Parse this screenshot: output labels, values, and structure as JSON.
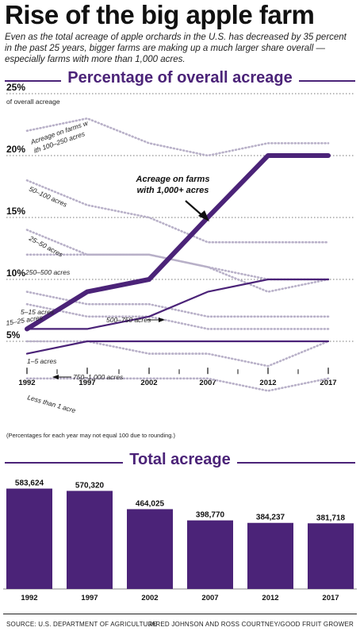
{
  "header": {
    "title": "Rise of the big apple farm",
    "subtitle": "Even as the total acreage of apple orchards in the U.S. has decreased by 35 percent in the past 25 years, bigger farms are making up a much larger share overall — especially farms with more than 1,000 acres."
  },
  "footer": {
    "source": "SOURCE: U.S. DEPARTMENT OF AGRICULTURE",
    "credit": "JARED JOHNSON AND ROSS COURTNEY/GOOD FRUIT GROWER"
  },
  "colors": {
    "accent": "#4b2378",
    "dotted": "#b8b0c8"
  },
  "chart_data": [
    {
      "type": "line",
      "title": "Percentage of overall acreage",
      "ytop_label": "of overall acreage",
      "note": "(Percentages for each year may not equal 100 due to rounding.)",
      "x": [
        "1992",
        "1997",
        "2002",
        "2007",
        "2012",
        "2017"
      ],
      "y_ticks": [
        "25%",
        "20%",
        "15%",
        "10%",
        "5%"
      ],
      "ylim": [
        3,
        25
      ],
      "grid": true,
      "series": [
        {
          "name": "Acreage on farms with 1,000+ acres",
          "style": "bold",
          "values": [
            6,
            9,
            10,
            15,
            20,
            20
          ]
        },
        {
          "name": "500–750 acres",
          "style": "solid",
          "values": [
            6,
            6,
            7,
            9,
            10,
            10
          ]
        },
        {
          "name": "750–1,000 acres",
          "style": "solid",
          "values": [
            4,
            5,
            5,
            5,
            5,
            5
          ]
        },
        {
          "name": "Acreage on farms with 100–250 acres",
          "style": "dotted",
          "values": [
            22,
            23,
            21,
            20,
            21,
            21
          ]
        },
        {
          "name": "50–100 acres",
          "style": "dotted",
          "values": [
            18,
            16,
            15,
            13,
            13,
            13
          ]
        },
        {
          "name": "25–50 acres",
          "style": "dotted",
          "values": [
            14,
            12,
            12,
            11,
            9,
            10
          ]
        },
        {
          "name": "250–500 acres",
          "style": "dotted",
          "values": [
            12,
            12,
            12,
            11,
            10,
            10
          ]
        },
        {
          "name": "5–15 acres",
          "style": "dotted",
          "values": [
            9,
            8,
            8,
            7,
            7,
            7
          ]
        },
        {
          "name": "15–25 acres",
          "style": "dotted",
          "values": [
            8,
            7,
            7,
            6,
            6,
            6
          ]
        },
        {
          "name": "1–5 acres",
          "style": "dotted",
          "values": [
            5,
            5,
            4,
            4,
            3,
            5
          ]
        },
        {
          "name": "Less than 1 acre",
          "style": "dotted",
          "values": [
            2,
            2,
            2,
            2,
            1,
            2
          ]
        }
      ]
    },
    {
      "type": "bar",
      "title": "Total acreage",
      "categories": [
        "1992",
        "1997",
        "2002",
        "2007",
        "2012",
        "2017"
      ],
      "values": [
        583624,
        570320,
        464025,
        398770,
        384237,
        381718
      ],
      "value_labels": [
        "583,624",
        "570,320",
        "464,025",
        "398,770",
        "384,237",
        "381,718"
      ]
    }
  ]
}
